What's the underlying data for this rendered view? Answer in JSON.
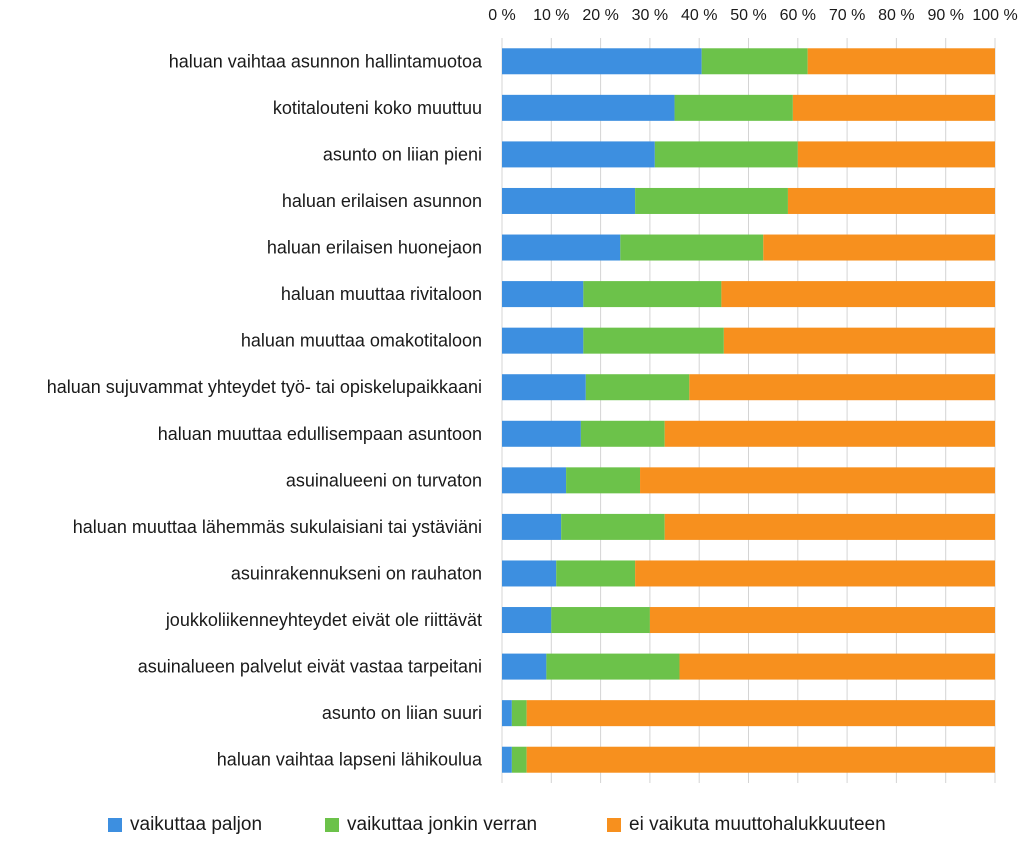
{
  "chart_data": {
    "type": "bar",
    "orientation": "horizontal",
    "stacked": "percent",
    "categories": [
      "haluan vaihtaa asunnon hallintamuotoa",
      "kotitalouteni koko muuttuu",
      "asunto on liian pieni",
      "haluan erilaisen asunnon",
      "haluan erilaisen huonejaon",
      "haluan muuttaa rivitaloon",
      "haluan muuttaa omakotitaloon",
      "haluan sujuvammat yhteydet työ- tai opiskelupaikkaani",
      "haluan muuttaa edullisempaan asuntoon",
      "asuinalueeni on turvaton",
      "haluan muuttaa lähemmäs sukulaisiani tai ystäviäni",
      "asuinrakennukseni on rauhaton",
      "joukkoliikenneyhteydet eivät ole riittävät",
      "asuinalueen palvelut eivät vastaa tarpeitani",
      "asunto on liian suuri",
      "haluan vaihtaa lapseni lähikoulua"
    ],
    "series": [
      {
        "name": "vaikuttaa paljon",
        "color": "#3d8fe0",
        "values": [
          40.5,
          35,
          31,
          27,
          24,
          16.5,
          16.5,
          17,
          16,
          13,
          12,
          11,
          10,
          9,
          2,
          2
        ]
      },
      {
        "name": "vaikuttaa jonkin verran",
        "color": "#6cc24a",
        "values": [
          21.5,
          24,
          29,
          31,
          29,
          28,
          28.5,
          21,
          17,
          15,
          21,
          16,
          20,
          27,
          3,
          3
        ]
      },
      {
        "name": "ei vaikuta muuttohalukkuuteen",
        "color": "#f7901e",
        "values": [
          38,
          41,
          40,
          42,
          47,
          55.5,
          55,
          62,
          67,
          72,
          67,
          73,
          70,
          64,
          95,
          95
        ]
      }
    ],
    "xticks": [
      "0 %",
      "10 %",
      "20 %",
      "30 %",
      "40 %",
      "50 %",
      "60 %",
      "70 %",
      "80 %",
      "90 %",
      "100 %"
    ],
    "xlim": [
      0,
      100
    ],
    "x_axis_position": "top",
    "grid": true,
    "legend_position": "bottom"
  }
}
